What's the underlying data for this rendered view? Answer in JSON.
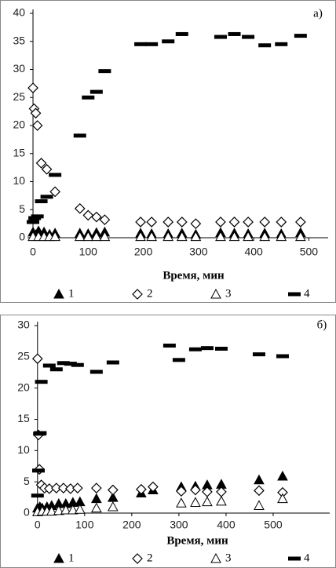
{
  "chart_data": [
    {
      "type": "scatter",
      "panel_label": "а)",
      "x_label": "Время, мин",
      "xlim": [
        -10,
        535
      ],
      "xticks": [
        0,
        100,
        200,
        300,
        400,
        500
      ],
      "ylim": [
        0,
        40
      ],
      "yticks": [
        0,
        5,
        10,
        15,
        20,
        25,
        30,
        35,
        40
      ],
      "series": [
        {
          "name": "1",
          "marker": "triangle-filled",
          "color": "#000000",
          "x": [
            0,
            5,
            10,
            20,
            30,
            40,
            85,
            100,
            115,
            130,
            195,
            215,
            245,
            270,
            295,
            340,
            365,
            390,
            420,
            450,
            485
          ],
          "values": [
            1,
            0.5,
            1.2,
            1,
            0.6,
            0.8,
            0.8,
            0.7,
            0.9,
            1,
            0.8,
            0.7,
            0.7,
            0.8,
            0.6,
            0.9,
            0.8,
            0.7,
            0.8,
            0.7,
            0.9
          ]
        },
        {
          "name": "2",
          "marker": "diamond",
          "color": "#000000",
          "x": [
            0,
            2,
            5,
            8,
            15,
            25,
            40,
            85,
            100,
            115,
            130,
            195,
            215,
            245,
            270,
            295,
            340,
            365,
            390,
            420,
            450,
            485
          ],
          "values": [
            26.7,
            23,
            22.2,
            20,
            13.3,
            12.2,
            8.2,
            5.2,
            4,
            3.7,
            3.2,
            2.8,
            2.8,
            2.8,
            2.8,
            2.5,
            2.8,
            2.8,
            2.8,
            2.8,
            2.8,
            2.8
          ]
        },
        {
          "name": "3",
          "marker": "triangle-open",
          "color": "#000000",
          "x": [
            0,
            10,
            20,
            30,
            40,
            85,
            100,
            115,
            130,
            195,
            215,
            245,
            270,
            295,
            340,
            365,
            390,
            420,
            450,
            485
          ],
          "values": [
            0.2,
            0.2,
            0.2,
            0.2,
            0.2,
            0.2,
            0.2,
            0.2,
            0.2,
            0.2,
            0.2,
            0.2,
            0.2,
            0.2,
            0.2,
            0.2,
            0.2,
            0.2,
            0.2,
            0.2
          ]
        },
        {
          "name": "4",
          "marker": "dash",
          "color": "#000000",
          "x": [
            0,
            3,
            8,
            15,
            25,
            40,
            85,
            100,
            115,
            130,
            195,
            215,
            245,
            270,
            340,
            365,
            390,
            420,
            450,
            485
          ],
          "values": [
            2.8,
            3.5,
            3.8,
            6.5,
            7.3,
            11.2,
            18.2,
            25,
            26,
            29.7,
            34.5,
            34.5,
            35,
            36.3,
            35.8,
            36.3,
            35.8,
            34.3,
            34.5,
            36
          ]
        }
      ]
    },
    {
      "type": "scatter",
      "panel_label": "б)",
      "x_label": "Время, мин",
      "xlim": [
        -8,
        620
      ],
      "xticks": [
        0,
        100,
        200,
        300,
        400,
        500
      ],
      "ylim": [
        0,
        30
      ],
      "yticks": [
        0,
        5,
        10,
        15,
        20,
        25,
        30
      ],
      "series": [
        {
          "name": "1",
          "marker": "triangle-filled",
          "color": "#000000",
          "x": [
            0,
            5,
            10,
            20,
            30,
            45,
            60,
            75,
            90,
            125,
            160,
            220,
            245,
            305,
            335,
            360,
            390,
            470,
            520
          ],
          "values": [
            0.8,
            1,
            0.8,
            1,
            1.2,
            1.5,
            1.5,
            1.7,
            1.8,
            2.3,
            2.5,
            3.2,
            3.7,
            4.2,
            4.3,
            4.5,
            4.6,
            5.3,
            5.9
          ]
        },
        {
          "name": "2",
          "marker": "diamond",
          "color": "#000000",
          "x": [
            0,
            2,
            4,
            8,
            15,
            25,
            40,
            55,
            70,
            85,
            125,
            160,
            220,
            245,
            305,
            335,
            360,
            390,
            470,
            520
          ],
          "values": [
            24.7,
            12.5,
            7,
            4.5,
            4,
            3.9,
            4,
            4,
            3.9,
            4,
            4,
            3.7,
            3.8,
            4.2,
            3.5,
            3.7,
            3.4,
            3.4,
            3.6,
            3.3
          ]
        },
        {
          "name": "3",
          "marker": "triangle-open",
          "color": "#000000",
          "x": [
            0,
            10,
            20,
            30,
            45,
            60,
            75,
            90,
            125,
            160,
            305,
            335,
            360,
            390,
            470,
            520
          ],
          "values": [
            0.2,
            0.3,
            0.3,
            0.3,
            0.4,
            0.5,
            0.5,
            0.6,
            0.8,
            1,
            1.6,
            1.7,
            1.8,
            1.9,
            1.2,
            2.3
          ]
        },
        {
          "name": "4",
          "marker": "dash",
          "color": "#000000",
          "x": [
            0,
            2,
            4,
            6,
            8,
            25,
            40,
            55,
            70,
            85,
            125,
            160,
            280,
            300,
            335,
            360,
            390,
            470,
            520
          ],
          "values": [
            2.8,
            6.8,
            12.7,
            12.8,
            21,
            23.6,
            23,
            24,
            23.9,
            23.7,
            22.6,
            24.1,
            26.8,
            24.5,
            26.2,
            26.4,
            26.3,
            25.4,
            25.1
          ]
        }
      ]
    }
  ]
}
